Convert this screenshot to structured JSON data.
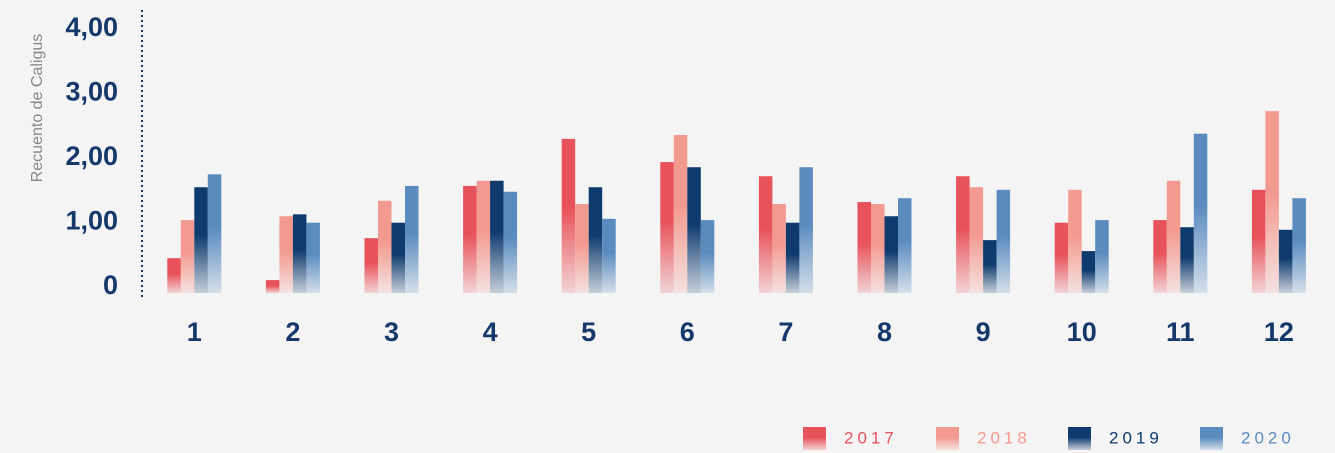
{
  "chart_data": {
    "type": "bar",
    "y_axis_label": "Recuento de Caligus",
    "categories": [
      "1",
      "2",
      "3",
      "4",
      "5",
      "6",
      "7",
      "8",
      "9",
      "10",
      "11",
      "12"
    ],
    "series": [
      {
        "name": "2017",
        "color": "#e8525a",
        "values": [
          0.54,
          0.2,
          0.85,
          1.66,
          2.39,
          2.03,
          1.81,
          1.41,
          1.81,
          1.09,
          1.13,
          1.6
        ]
      },
      {
        "name": "2018",
        "color": "#f39a90",
        "values": [
          1.13,
          1.19,
          1.43,
          1.74,
          1.38,
          2.45,
          1.38,
          1.38,
          1.64,
          1.6,
          1.74,
          2.82
        ]
      },
      {
        "name": "2019",
        "color": "#0e3a6e",
        "values": [
          1.64,
          1.22,
          1.09,
          1.74,
          1.64,
          1.95,
          1.09,
          1.19,
          0.82,
          0.65,
          1.02,
          0.98
        ]
      },
      {
        "name": "2020",
        "color": "#5a8bbf",
        "values": [
          1.84,
          1.09,
          1.66,
          1.57,
          1.15,
          1.13,
          1.95,
          1.47,
          1.6,
          1.13,
          2.47,
          1.47
        ]
      }
    ],
    "ylim": [
      0,
      4.3
    ],
    "yticks": [
      0,
      {
        "value": 1,
        "label": "1,00"
      },
      {
        "value": 2,
        "label": "2,00"
      },
      {
        "value": 3,
        "label": "3,00"
      },
      {
        "value": 4,
        "label": "4,00"
      }
    ],
    "legend": "bottom-right"
  }
}
